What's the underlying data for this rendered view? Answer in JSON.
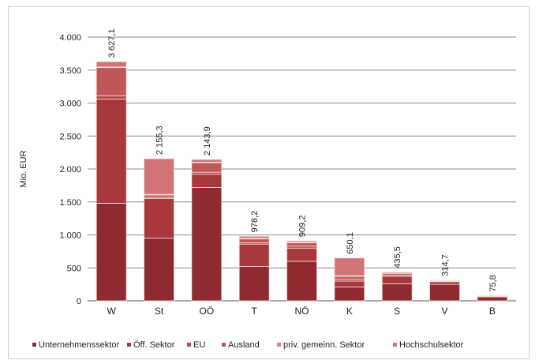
{
  "chart_data": {
    "type": "bar",
    "stacked": true,
    "ylabel": "Mio. EUR",
    "xlabel": "",
    "ylim": [
      0,
      4000
    ],
    "yticks": [
      {
        "v": 0,
        "label": "0"
      },
      {
        "v": 500,
        "label": "500"
      },
      {
        "v": 1000,
        "label": "1.000"
      },
      {
        "v": 1500,
        "label": "1.500"
      },
      {
        "v": 2000,
        "label": "2.000"
      },
      {
        "v": 2500,
        "label": "2.500"
      },
      {
        "v": 3000,
        "label": "3.000"
      },
      {
        "v": 3500,
        "label": "3.500"
      },
      {
        "v": 4000,
        "label": "4.000"
      }
    ],
    "grid": true,
    "legend_position": "bottom",
    "categories": [
      "W",
      "St",
      "OÖ",
      "T",
      "NÖ",
      "K",
      "S",
      "V",
      "B"
    ],
    "totals": [
      3627.1,
      2155.3,
      2143.9,
      978.2,
      909.2,
      650.1,
      435.5,
      314.7,
      75.8
    ],
    "total_labels": [
      "3 627,1",
      "2 155,3",
      "2 143,9",
      "978,2",
      "909,2",
      "650,1",
      "435,5",
      "314,7",
      "75,8"
    ],
    "series": [
      {
        "name": "Unternehmenssektor",
        "color": "#8e2a30",
        "values": [
          1480,
          950,
          1720,
          520,
          600,
          210,
          260,
          250,
          60
        ]
      },
      {
        "name": "Öff. Sektor",
        "color": "#a8383c",
        "values": [
          1580,
          600,
          200,
          340,
          200,
          90,
          110,
          40,
          10
        ]
      },
      {
        "name": "EU",
        "color": "#b4484a",
        "values": [
          50,
          20,
          30,
          20,
          30,
          30,
          20,
          10,
          3
        ]
      },
      {
        "name": "Ausland",
        "color": "#c0585a",
        "values": [
          427.1,
          35.3,
          143.9,
          58.2,
          49.2,
          40.1,
          25.5,
          9.7,
          2.8
        ]
      },
      {
        "name": "priv. gemeinn. Sektor",
        "color": "#d88488",
        "values": [
          10,
          10,
          10,
          10,
          10,
          10,
          5,
          3,
          0
        ]
      },
      {
        "name": "Hochschulsektor",
        "color": "#d27476",
        "values": [
          80,
          540,
          40,
          30,
          20,
          270,
          15,
          2,
          0
        ]
      }
    ]
  }
}
